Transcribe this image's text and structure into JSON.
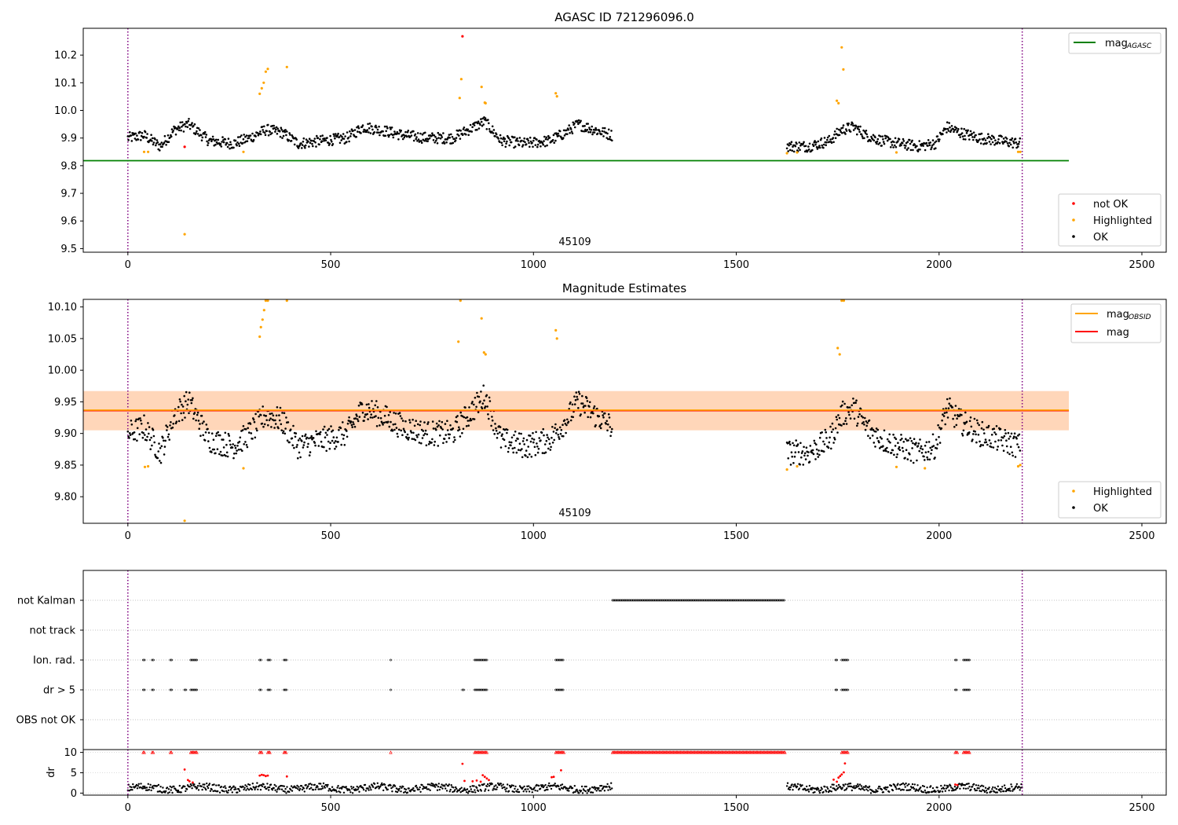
{
  "chart_data": [
    {
      "type": "scatter",
      "title": "AGASC ID 721296096.0",
      "annotation": "45109",
      "xlim": [
        -110,
        2560
      ],
      "ylim": [
        9.487,
        10.297
      ],
      "xticks": [
        0,
        500,
        1000,
        1500,
        2000,
        2500
      ],
      "yticks": [
        9.5,
        9.6,
        9.7,
        9.8,
        9.9,
        10.0,
        10.1,
        10.2
      ],
      "ytick_labels": [
        "9.5",
        "9.6",
        "9.7",
        "9.8",
        "9.9",
        "10.0",
        "10.1",
        "10.2"
      ],
      "vlines": [
        0,
        2205
      ],
      "hlines": [
        {
          "name": "mag_AGASC",
          "y": 9.818,
          "x": [
            -110,
            2320
          ],
          "color": "#008000"
        }
      ],
      "legends": [
        {
          "position": "top-right",
          "entries": [
            {
              "label": "mag",
              "sub": "AGASC",
              "color": "#008000",
              "kind": "line"
            }
          ]
        },
        {
          "position": "lower-right",
          "entries": [
            {
              "label": "not OK",
              "color": "#ff0000",
              "kind": "dot"
            },
            {
              "label": "Highlighted",
              "color": "#ffa500",
              "kind": "dot"
            },
            {
              "label": "OK",
              "color": "#000000",
              "kind": "dot"
            }
          ]
        }
      ],
      "series": [
        {
          "name": "OK",
          "color": "#000000",
          "segments": [
            {
              "x": [
                0,
                40,
                80,
                115,
                150,
                200,
                260,
                300,
                340,
                380,
                420,
                480,
                540,
                580,
                620,
                680,
                740,
                800,
                840,
                880,
                920,
                980,
                1040,
                1080,
                1110,
                1150,
                1195
              ],
              "y": [
                9.9,
                9.91,
                9.87,
                9.93,
                9.95,
                9.89,
                9.88,
                9.9,
                9.93,
                9.92,
                9.88,
                9.89,
                9.9,
                9.94,
                9.93,
                9.91,
                9.9,
                9.9,
                9.93,
                9.96,
                9.89,
                9.88,
                9.89,
                9.92,
                9.95,
                9.93,
                9.91
              ]
            },
            {
              "x": [
                1625,
                1680,
                1730,
                1760,
                1790,
                1820,
                1860,
                1900,
                1950,
                1990,
                2020,
                2050,
                2100,
                2150,
                2200
              ],
              "y": [
                9.87,
                9.87,
                9.89,
                9.93,
                9.94,
                9.91,
                9.89,
                9.88,
                9.87,
                9.88,
                9.94,
                9.92,
                9.9,
                9.89,
                9.88
              ]
            }
          ]
        },
        {
          "name": "Highlighted",
          "color": "#ffa500",
          "points": [
            [
              40,
              9.85
            ],
            [
              50,
              9.85
            ],
            [
              140,
              9.552
            ],
            [
              285,
              9.85
            ],
            [
              325,
              10.06
            ],
            [
              330,
              10.08
            ],
            [
              335,
              10.1
            ],
            [
              340,
              10.14
            ],
            [
              345,
              10.15
            ],
            [
              392,
              10.157
            ],
            [
              818,
              10.045
            ],
            [
              822,
              10.113
            ],
            [
              872,
              10.085
            ],
            [
              880,
              10.028
            ],
            [
              882,
              10.026
            ],
            [
              1055,
              10.062
            ],
            [
              1058,
              10.051
            ],
            [
              1625,
              9.845
            ],
            [
              1650,
              9.848
            ],
            [
              1748,
              10.035
            ],
            [
              1752,
              10.026
            ],
            [
              1760,
              10.228
            ],
            [
              1764,
              10.148
            ],
            [
              1895,
              9.848
            ],
            [
              2195,
              9.85
            ],
            [
              2200,
              9.85
            ]
          ]
        },
        {
          "name": "not OK",
          "color": "#ff0000",
          "points": [
            [
              140,
              9.868
            ],
            [
              825,
              10.268
            ]
          ]
        }
      ]
    },
    {
      "type": "scatter",
      "title": "Magnitude Estimates",
      "annotation": "45109",
      "xlim": [
        -110,
        2560
      ],
      "ylim": [
        9.758,
        10.112
      ],
      "xticks": [
        0,
        500,
        1000,
        1500,
        2000,
        2500
      ],
      "yticks": [
        9.8,
        9.85,
        9.9,
        9.95,
        10.0,
        10.05,
        10.1
      ],
      "ytick_labels": [
        "9.80",
        "9.85",
        "9.90",
        "9.95",
        "10.00",
        "10.05",
        "10.10"
      ],
      "vlines": [
        0,
        2205
      ],
      "hlines": [
        {
          "name": "mag",
          "y": 9.936,
          "x": [
            -110,
            2320
          ],
          "color": "#ff0000"
        },
        {
          "name": "mag_OBSID",
          "y": 9.937,
          "x": [
            -110,
            2320
          ],
          "color": "#ffa500"
        }
      ],
      "bands": [
        {
          "color": "#ffc0cb",
          "y": [
            9.905,
            9.967
          ],
          "x": [
            -110,
            2320
          ]
        },
        {
          "color": "#ffa500",
          "y": [
            9.905,
            9.967
          ],
          "x": [
            -110,
            2320
          ]
        }
      ],
      "legends": [
        {
          "position": "top-right",
          "entries": [
            {
              "label": "mag",
              "sub": "OBSID",
              "color": "#ffa500",
              "kind": "line"
            },
            {
              "label": "mag",
              "color": "#ff0000",
              "kind": "line"
            }
          ]
        },
        {
          "position": "lower-right",
          "entries": [
            {
              "label": "Highlighted",
              "color": "#ffa500",
              "kind": "dot"
            },
            {
              "label": "OK",
              "color": "#000000",
              "kind": "dot"
            }
          ]
        }
      ],
      "series": [
        {
          "name": "OK",
          "color": "#000000",
          "segments": [
            {
              "x": [
                0,
                40,
                80,
                115,
                150,
                200,
                260,
                300,
                340,
                380,
                420,
                480,
                540,
                580,
                620,
                680,
                740,
                800,
                840,
                880,
                920,
                980,
                1040,
                1080,
                1110,
                1150,
                1195
              ],
              "y": [
                9.9,
                9.91,
                9.87,
                9.93,
                9.95,
                9.89,
                9.88,
                9.9,
                9.93,
                9.92,
                9.88,
                9.89,
                9.9,
                9.94,
                9.93,
                9.91,
                9.9,
                9.9,
                9.93,
                9.96,
                9.89,
                9.88,
                9.89,
                9.92,
                9.95,
                9.93,
                9.91
              ]
            },
            {
              "x": [
                1625,
                1680,
                1730,
                1760,
                1790,
                1820,
                1860,
                1900,
                1950,
                1990,
                2020,
                2050,
                2100,
                2150,
                2200
              ],
              "y": [
                9.87,
                9.87,
                9.89,
                9.93,
                9.94,
                9.91,
                9.89,
                9.88,
                9.87,
                9.88,
                9.94,
                9.92,
                9.9,
                9.89,
                9.88
              ]
            }
          ]
        },
        {
          "name": "Highlighted",
          "color": "#ffa500",
          "points": [
            [
              42,
              9.847
            ],
            [
              50,
              9.848
            ],
            [
              140,
              9.762
            ],
            [
              285,
              9.845
            ],
            [
              325,
              10.053
            ],
            [
              328,
              10.068
            ],
            [
              332,
              10.08
            ],
            [
              336,
              10.095
            ],
            [
              340,
              10.11
            ],
            [
              345,
              10.11
            ],
            [
              392,
              10.11
            ],
            [
              815,
              10.045
            ],
            [
              820,
              10.11
            ],
            [
              872,
              10.082
            ],
            [
              878,
              10.028
            ],
            [
              882,
              10.025
            ],
            [
              1055,
              10.063
            ],
            [
              1058,
              10.05
            ],
            [
              1625,
              9.843
            ],
            [
              1650,
              9.848
            ],
            [
              1750,
              10.035
            ],
            [
              1755,
              10.025
            ],
            [
              1760,
              10.11
            ],
            [
              1765,
              10.11
            ],
            [
              1895,
              9.847
            ],
            [
              1965,
              9.845
            ],
            [
              2195,
              9.848
            ],
            [
              2200,
              9.85
            ]
          ]
        }
      ]
    },
    {
      "type": "scatter",
      "title": "",
      "xlim": [
        -110,
        2560
      ],
      "categories": [
        "not Kalman",
        "not track",
        "Ion. rad.",
        "dr > 5",
        "OBS not OK"
      ],
      "vlines": [
        0,
        2205
      ],
      "flags": {
        "not Kalman": [
          [
            1195,
            1620
          ]
        ],
        "not track": [],
        "Ion. rad.": [
          [
            38,
            42
          ],
          [
            60,
            64
          ],
          [
            105,
            108
          ],
          [
            155,
            170
          ],
          [
            325,
            330
          ],
          [
            345,
            352
          ],
          [
            385,
            392
          ],
          [
            648,
            650
          ],
          [
            855,
            885
          ],
          [
            1055,
            1075
          ],
          [
            1745,
            1750
          ],
          [
            1760,
            1775
          ],
          [
            2040,
            2045
          ],
          [
            2060,
            2075
          ]
        ],
        "dr > 5": [
          [
            38,
            42
          ],
          [
            60,
            64
          ],
          [
            105,
            108
          ],
          [
            140,
            145
          ],
          [
            155,
            170
          ],
          [
            325,
            330
          ],
          [
            345,
            352
          ],
          [
            385,
            392
          ],
          [
            648,
            650
          ],
          [
            825,
            828
          ],
          [
            855,
            885
          ],
          [
            1055,
            1075
          ],
          [
            1745,
            1750
          ],
          [
            1760,
            1775
          ],
          [
            2040,
            2045
          ],
          [
            2060,
            2075
          ]
        ],
        "OBS not OK": []
      },
      "dr_panel": {
        "ylabel": "dr",
        "ylim": [
          -0.5,
          10.7
        ],
        "yticks": [
          0,
          5,
          10
        ],
        "ytick_labels": [
          "0",
          "5",
          "10"
        ],
        "ok_segments": [
          [
            0,
            1195
          ],
          [
            1625,
            2205
          ]
        ],
        "clipped_ranges": [
          [
            38,
            42
          ],
          [
            60,
            64
          ],
          [
            105,
            108
          ],
          [
            155,
            170
          ],
          [
            325,
            330
          ],
          [
            345,
            352
          ],
          [
            385,
            392
          ],
          [
            648,
            650
          ],
          [
            855,
            885
          ],
          [
            1055,
            1075
          ],
          [
            1195,
            1620
          ],
          [
            1760,
            1775
          ],
          [
            2040,
            2045
          ],
          [
            2060,
            2075
          ]
        ],
        "red_points": [
          [
            140,
            5.8
          ],
          [
            148,
            3.2
          ],
          [
            152,
            2.9
          ],
          [
            160,
            2.6
          ],
          [
            325,
            4.3
          ],
          [
            330,
            4.5
          ],
          [
            335,
            4.4
          ],
          [
            340,
            4.2
          ],
          [
            345,
            4.3
          ],
          [
            392,
            4.1
          ],
          [
            825,
            7.2
          ],
          [
            830,
            3.0
          ],
          [
            850,
            2.9
          ],
          [
            860,
            3.1
          ],
          [
            870,
            2.8
          ],
          [
            875,
            4.4
          ],
          [
            880,
            4.0
          ],
          [
            885,
            3.6
          ],
          [
            890,
            3.2
          ],
          [
            1045,
            3.9
          ],
          [
            1050,
            4.0
          ],
          [
            1068,
            5.6
          ],
          [
            1740,
            3.3
          ],
          [
            1748,
            2.8
          ],
          [
            1752,
            3.8
          ],
          [
            1756,
            4.2
          ],
          [
            1760,
            4.6
          ],
          [
            1765,
            5.1
          ],
          [
            1768,
            7.3
          ],
          [
            2040,
            2.1
          ],
          [
            2045,
            2.0
          ]
        ]
      }
    }
  ]
}
